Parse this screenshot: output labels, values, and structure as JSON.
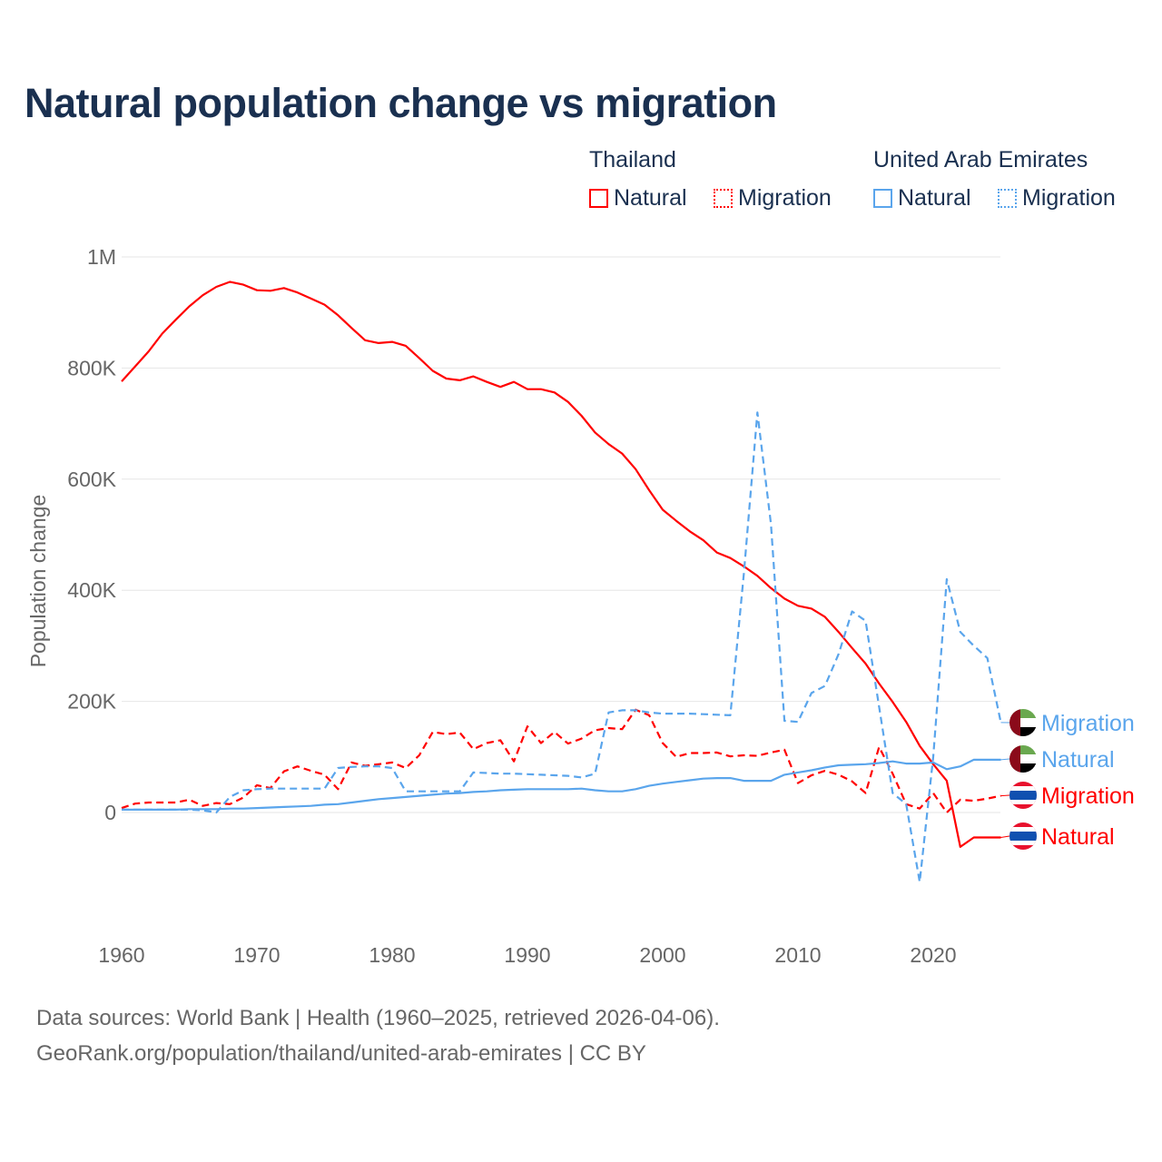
{
  "colors": {
    "thailand": "#ff0000",
    "uae": "#5aa5ec",
    "title": "#1a3050",
    "grid": "#e6e6e6"
  },
  "legend": {
    "groups": [
      {
        "name": "Thailand",
        "color": "#ff0000",
        "items": [
          {
            "label": "Natural",
            "style": "solid"
          },
          {
            "label": "Migration",
            "style": "dotted"
          }
        ]
      },
      {
        "name": "United Arab Emirates",
        "color": "#5aa5ec",
        "items": [
          {
            "label": "Natural",
            "style": "solid"
          },
          {
            "label": "Migration",
            "style": "dotted"
          }
        ]
      }
    ]
  },
  "footer": {
    "line1": "Data sources: World Bank | Health (1960–2025, retrieved 2026-04-06).",
    "line2": "GeoRank.org/population/thailand/united-arab-emirates | CC BY"
  },
  "chart_data": {
    "type": "line",
    "title": "Natural population change vs migration",
    "xlabel": "",
    "ylabel": "Population change",
    "xlim": [
      1960,
      2025
    ],
    "ylim": [
      -200000,
      1000000
    ],
    "grid": true,
    "legend_position": "top-right",
    "x_ticks": [
      {
        "value": 1960,
        "label": "1960"
      },
      {
        "value": 1970,
        "label": "1970"
      },
      {
        "value": 1980,
        "label": "1980"
      },
      {
        "value": 1990,
        "label": "1990"
      },
      {
        "value": 2000,
        "label": "2000"
      },
      {
        "value": 2010,
        "label": "2010"
      },
      {
        "value": 2020,
        "label": "2020"
      }
    ],
    "y_ticks": [
      {
        "value": 0,
        "label": "0"
      },
      {
        "value": 200000,
        "label": "200K"
      },
      {
        "value": 400000,
        "label": "400K"
      },
      {
        "value": 600000,
        "label": "600K"
      },
      {
        "value": 800000,
        "label": "800K"
      },
      {
        "value": 1000000,
        "label": "1M"
      }
    ],
    "x_start": 1960,
    "series": [
      {
        "name": "Thailand Natural",
        "end_label": "Natural",
        "country": "thailand",
        "color": "#ff0000",
        "dash": "solid",
        "values": [
          776000,
          803000,
          830000,
          862000,
          887000,
          911000,
          931000,
          946000,
          955000,
          950000,
          940000,
          939000,
          944000,
          936000,
          925000,
          914000,
          895000,
          872000,
          850000,
          845000,
          847000,
          840000,
          818000,
          795000,
          781000,
          778000,
          785000,
          775000,
          766000,
          775000,
          762000,
          762000,
          756000,
          739000,
          714000,
          684000,
          663000,
          646000,
          618000,
          580000,
          545000,
          525000,
          506000,
          490000,
          468000,
          458000,
          443000,
          426000,
          404000,
          385000,
          372000,
          367000,
          352000,
          325000,
          296000,
          268000,
          232000,
          199000,
          163000,
          120000,
          87000,
          57000,
          -62000,
          -45000,
          -45000,
          -45000
        ]
      },
      {
        "name": "Thailand Migration",
        "end_label": "Migration",
        "country": "thailand",
        "color": "#ff0000",
        "dash": "dashed",
        "values": [
          8000,
          16000,
          18000,
          18000,
          18000,
          23000,
          12000,
          17000,
          15000,
          27000,
          49000,
          44000,
          74000,
          83000,
          75000,
          68000,
          42000,
          90000,
          84000,
          87000,
          90000,
          80000,
          103000,
          145000,
          141000,
          144000,
          114000,
          125000,
          130000,
          92000,
          155000,
          125000,
          145000,
          124000,
          133000,
          148000,
          152000,
          150000,
          185000,
          175000,
          125000,
          100000,
          107000,
          107000,
          108000,
          101000,
          103000,
          102000,
          108000,
          113000,
          53000,
          67000,
          75000,
          68000,
          56000,
          35000,
          118000,
          70000,
          15000,
          7000,
          35000,
          0,
          23000,
          21000,
          25000,
          30000
        ]
      },
      {
        "name": "United Arab Emirates Natural",
        "end_label": "Natural",
        "country": "uae",
        "color": "#5aa5ec",
        "dash": "solid",
        "values": [
          5000,
          5000,
          5000,
          5000,
          5000,
          6000,
          6000,
          6000,
          7000,
          7000,
          8000,
          9000,
          10000,
          11000,
          12000,
          14000,
          15000,
          18000,
          21000,
          24000,
          26000,
          28000,
          30000,
          32000,
          34000,
          35000,
          37000,
          38000,
          40000,
          41000,
          42000,
          42000,
          42000,
          42000,
          43000,
          40000,
          38000,
          38000,
          42000,
          48000,
          52000,
          55000,
          58000,
          61000,
          62000,
          62000,
          57000,
          57000,
          57000,
          68000,
          72000,
          76000,
          81000,
          85000,
          86000,
          87000,
          89000,
          92000,
          88000,
          88000,
          90000,
          78000,
          83000,
          95000,
          95000,
          95000
        ]
      },
      {
        "name": "United Arab Emirates Migration",
        "end_label": "Migration",
        "country": "uae",
        "color": "#5aa5ec",
        "dash": "dashed",
        "values": [
          5000,
          5000,
          5000,
          5000,
          5000,
          5000,
          4000,
          0,
          28000,
          40000,
          42000,
          43000,
          43000,
          43000,
          43000,
          43000,
          80000,
          82000,
          83000,
          83000,
          80000,
          38000,
          38000,
          38000,
          38000,
          38000,
          72000,
          71000,
          70000,
          70000,
          69000,
          68000,
          67000,
          66000,
          63000,
          70000,
          180000,
          184000,
          184000,
          180000,
          178000,
          178000,
          178000,
          177000,
          176000,
          175000,
          430000,
          720000,
          520000,
          165000,
          163000,
          215000,
          228000,
          285000,
          362000,
          345000,
          190000,
          35000,
          15000,
          -125000,
          100000,
          420000,
          325000,
          300000,
          278000,
          162000
        ]
      }
    ]
  }
}
